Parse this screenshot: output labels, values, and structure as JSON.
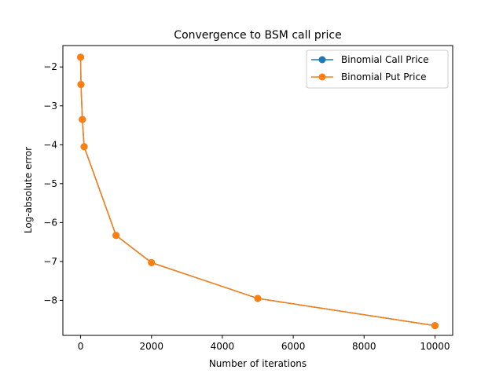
{
  "chart_data": {
    "type": "line",
    "title": "Convergence to BSM call price",
    "xlabel": "Number of iterations",
    "ylabel": "Log-absolute error",
    "xlim": [
      -500,
      10500
    ],
    "ylim": [
      -8.9,
      -1.45
    ],
    "xticks": [
      0,
      2000,
      4000,
      6000,
      8000,
      10000
    ],
    "xtick_labels": [
      "0",
      "2000",
      "4000",
      "6000",
      "8000",
      "10000"
    ],
    "yticks": [
      -2,
      -3,
      -4,
      -5,
      -6,
      -7,
      -8
    ],
    "ytick_labels": [
      "−2",
      "−3",
      "−4",
      "−5",
      "−6",
      "−7",
      "−8"
    ],
    "grid": false,
    "legend_position": "top-right",
    "markers": "circle",
    "series": [
      {
        "name": "Binomial Call Price",
        "color": "#1f77b4",
        "x": [
          1,
          10,
          50,
          100,
          1000,
          2000,
          5000,
          10000
        ],
        "y": [
          -1.75,
          -2.45,
          -3.35,
          -4.05,
          -6.33,
          -7.03,
          -7.95,
          -8.65
        ]
      },
      {
        "name": "Binomial Put Price",
        "color": "#ff7f0e",
        "x": [
          1,
          10,
          50,
          100,
          1000,
          2000,
          5000,
          10000
        ],
        "y": [
          -1.75,
          -2.45,
          -3.35,
          -4.05,
          -6.33,
          -7.03,
          -7.95,
          -8.65
        ]
      }
    ]
  }
}
